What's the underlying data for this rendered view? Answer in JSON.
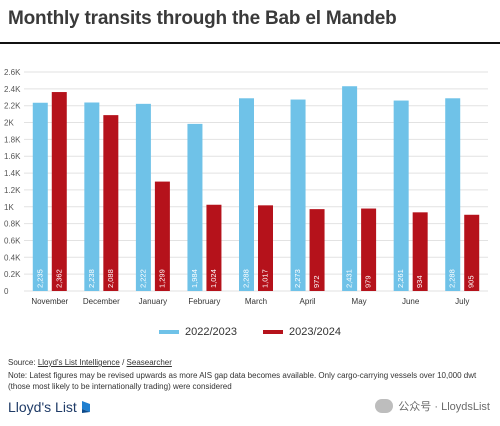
{
  "title": "Monthly transits through the Bab el Mandeb",
  "legend": {
    "series1": "2022/2023",
    "series2": "2023/2024"
  },
  "source": {
    "prefix": "Source:",
    "link1": "Lloyd's List Intelligence",
    "sep": "/",
    "link2": "Seasearcher"
  },
  "note": "Note: Latest figures may be revised upwards as more AIS gap data becomes available. Only cargo-carrying vessels over 10,000 dwt (those most likely to be internationally trading) were considered",
  "logo": {
    "text": "Lloyd's List"
  },
  "watermark": {
    "text": "公众号 · LloydsList"
  },
  "colors": {
    "series1": "#6fc2e8",
    "series2": "#b5121b",
    "grid": "#e2e2e2",
    "axis_text": "#555555",
    "title": "#3a3a3a"
  },
  "chart_data": {
    "type": "bar",
    "title": "Monthly transits through the Bab el Mandeb",
    "categories": [
      "November",
      "December",
      "January",
      "February",
      "March",
      "April",
      "May",
      "June",
      "July"
    ],
    "series": [
      {
        "name": "2022/2023",
        "values": [
          2235,
          2238,
          2222,
          1984,
          2288,
          2273,
          2431,
          2261,
          2288
        ],
        "labels": [
          "2,235",
          "2,238",
          "2,222",
          "1,984",
          "2,288",
          "2,273",
          "2,431",
          "2,261",
          "2,288"
        ]
      },
      {
        "name": "2023/2024",
        "values": [
          2362,
          2088,
          1299,
          1024,
          1017,
          972,
          979,
          934,
          905
        ],
        "labels": [
          "2,362",
          "2,088",
          "1,299",
          "1,024",
          "1,017",
          "972",
          "979",
          "934",
          "905"
        ]
      }
    ],
    "yticks": [
      0,
      200,
      400,
      600,
      800,
      1000,
      1200,
      1400,
      1600,
      1800,
      2000,
      2200,
      2400,
      2600
    ],
    "ytick_labels": [
      "0",
      "0.2K",
      "0.4K",
      "0.6K",
      "0.8K",
      "1K",
      "1.2K",
      "1.4K",
      "1.6K",
      "1.8K",
      "2K",
      "2.2K",
      "2.4K",
      "2.6K"
    ],
    "ylim": [
      0,
      2600
    ],
    "grid": true,
    "legend_position": "bottom-center"
  }
}
